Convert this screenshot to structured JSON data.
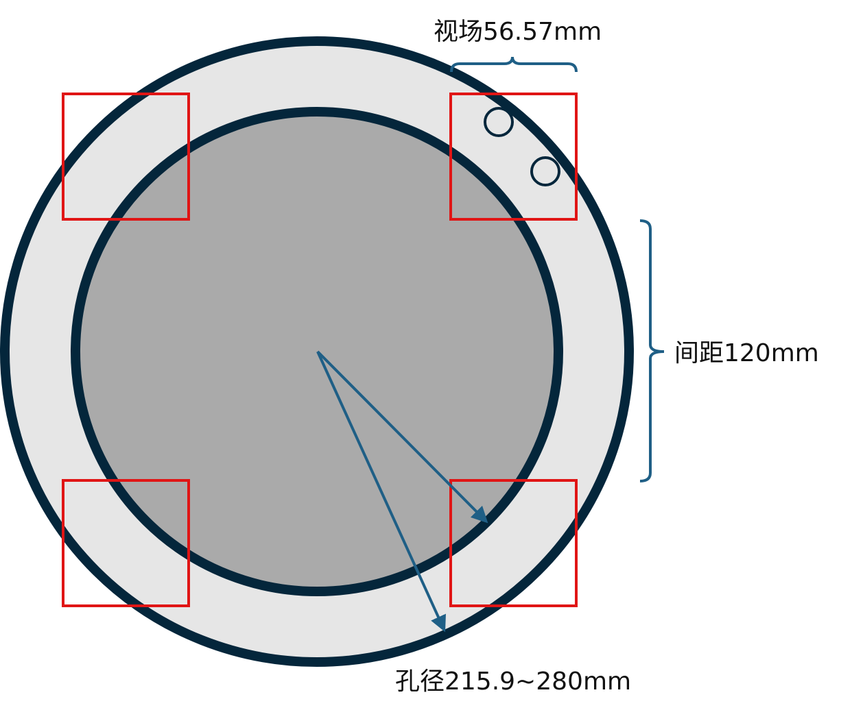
{
  "labels": {
    "field_of_view": "视场56.57mm",
    "spacing": "间距120mm",
    "aperture": "孔径215.9~280mm"
  },
  "colors": {
    "outer_ring_fill": "#e6e6e6",
    "inner_disk_fill": "#aaaaaa",
    "stroke_dark": "#04263b",
    "annotation_blue": "#1f5f86",
    "view_box_red": "#e01515",
    "background": "#ffffff"
  }
}
